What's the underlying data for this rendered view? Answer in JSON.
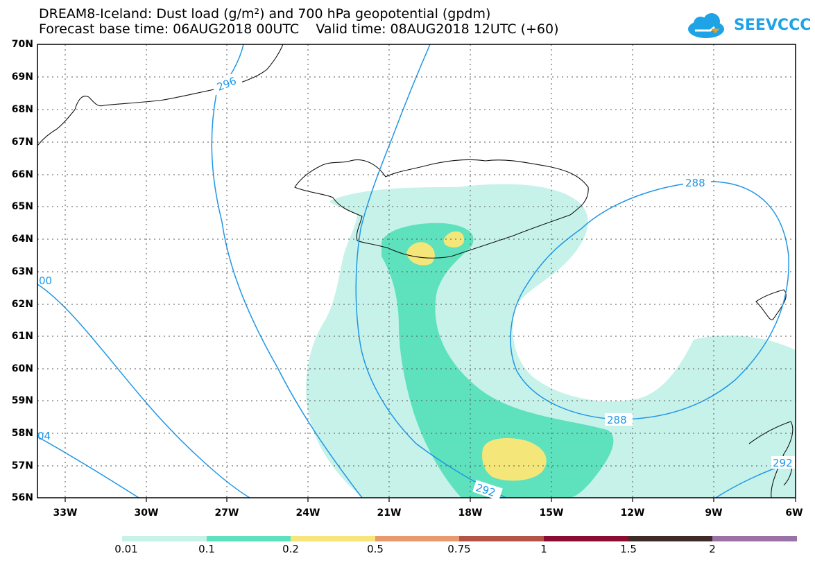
{
  "header": {
    "line1": "DREAM8-Iceland: Dust load (g/m²) and 700 hPa geopotential (gpdm)",
    "line2": "Forecast base time: 06AUG2018 00UTC    Valid time: 08AUG2018 12UTC (+60)"
  },
  "logo": {
    "text": "SEEVCCC",
    "icon": "cloud-icon"
  },
  "axes": {
    "lat_labels": [
      "70N",
      "69N",
      "68N",
      "67N",
      "66N",
      "65N",
      "64N",
      "63N",
      "62N",
      "61N",
      "60N",
      "59N",
      "58N",
      "57N",
      "56N"
    ],
    "lon_labels": [
      "33W",
      "30W",
      "27W",
      "24W",
      "21W",
      "18W",
      "15W",
      "12W",
      "9W",
      "6W"
    ]
  },
  "contours": {
    "labels": [
      "296",
      "288",
      "288",
      "292",
      "292",
      "00",
      "04"
    ]
  },
  "colorbar": {
    "tick_labels": [
      "0.01",
      "0.1",
      "0.2",
      "0.5",
      "0.75",
      "1",
      "1.5",
      "2"
    ],
    "colors": [
      "#c6f2ea",
      "#5ee2bd",
      "#f5e67a",
      "#e89a6e",
      "#b45448",
      "#8a0e32",
      "#3e2a26",
      "#9a72a6"
    ]
  },
  "colors": {
    "dust_light": "#c6f2ea",
    "dust_mid": "#5ee2bd",
    "dust_high": "#f5e67a",
    "contour": "#1e96e6",
    "brand": "#1ea3e6"
  }
}
